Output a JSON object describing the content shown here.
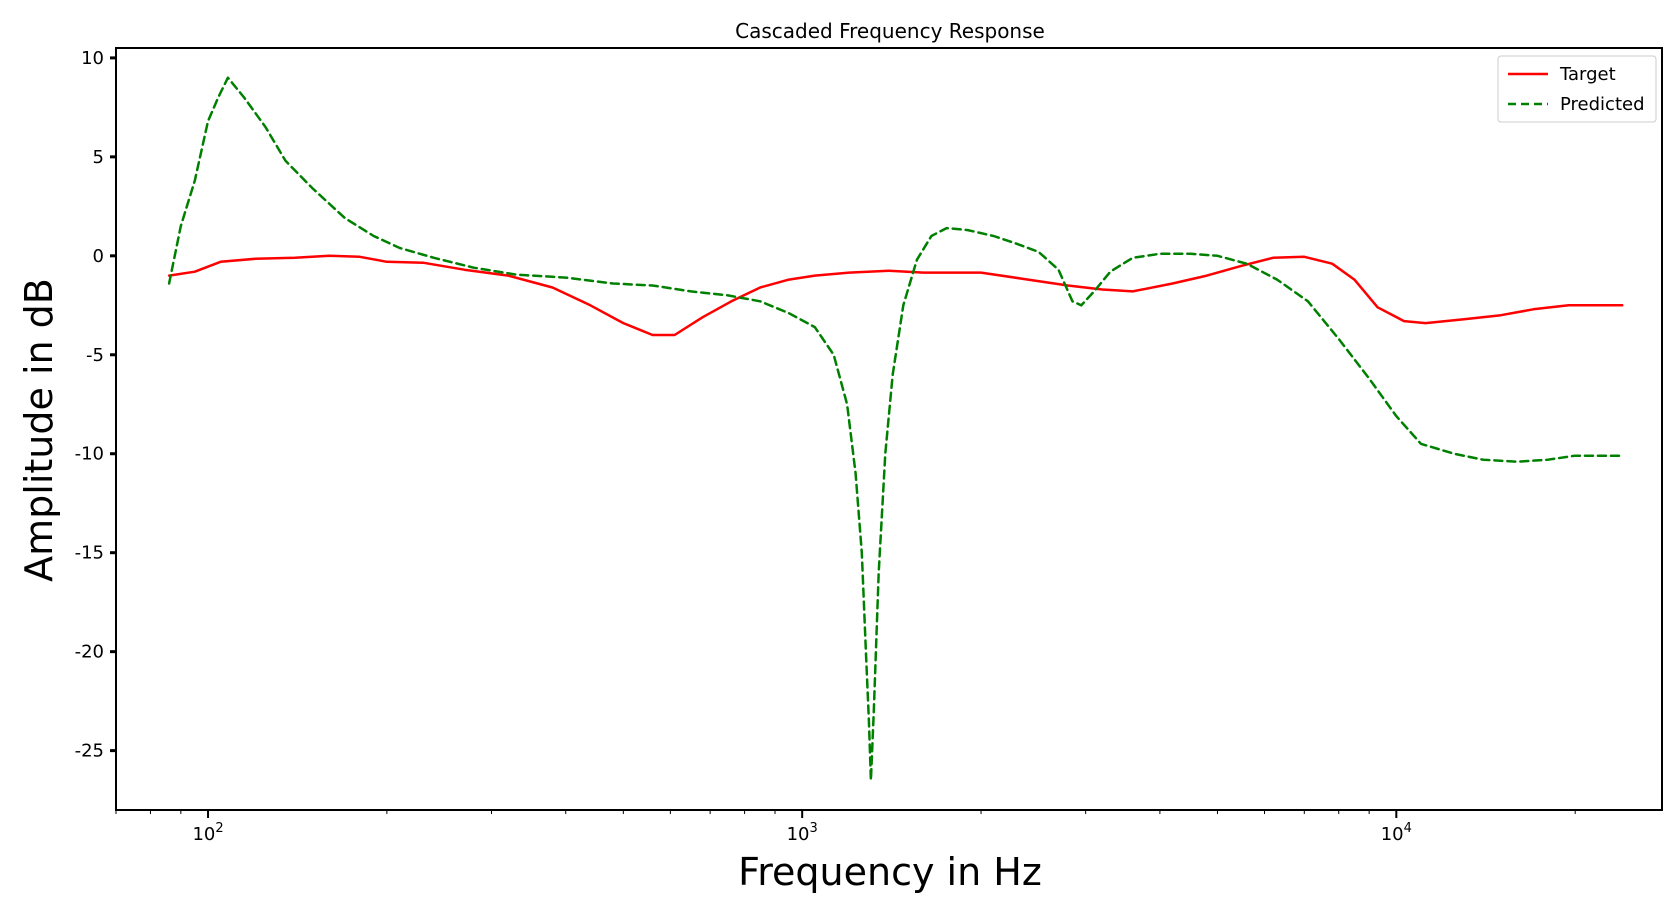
{
  "chart_data": {
    "type": "line",
    "title": "Cascaded Frequency Response",
    "xlabel": "Frequency in Hz",
    "ylabel": "Amplitude in dB",
    "xscale": "log",
    "xlim": [
      70,
      28000
    ],
    "ylim": [
      -28,
      10.5
    ],
    "xticks": [
      {
        "value": 100,
        "base": "10",
        "exp": "2"
      },
      {
        "value": 1000,
        "base": "10",
        "exp": "3"
      },
      {
        "value": 10000,
        "base": "10",
        "exp": "4"
      }
    ],
    "yticks": [
      {
        "value": 10,
        "label": "10"
      },
      {
        "value": 5,
        "label": "5"
      },
      {
        "value": 0,
        "label": "0"
      },
      {
        "value": -5,
        "label": "-5"
      },
      {
        "value": -10,
        "label": "-10"
      },
      {
        "value": -15,
        "label": "-15"
      },
      {
        "value": -20,
        "label": "-20"
      },
      {
        "value": -25,
        "label": "-25"
      }
    ],
    "grid": false,
    "legend_position": "top-right",
    "series": [
      {
        "name": "Target",
        "color": "#ff0000",
        "style": "solid",
        "points": [
          [
            86,
            -1.0
          ],
          [
            95,
            -0.8
          ],
          [
            105,
            -0.3
          ],
          [
            120,
            -0.15
          ],
          [
            140,
            -0.1
          ],
          [
            160,
            0.0
          ],
          [
            180,
            -0.05
          ],
          [
            200,
            -0.3
          ],
          [
            230,
            -0.35
          ],
          [
            270,
            -0.7
          ],
          [
            320,
            -1.0
          ],
          [
            380,
            -1.6
          ],
          [
            440,
            -2.5
          ],
          [
            500,
            -3.4
          ],
          [
            560,
            -4.0
          ],
          [
            610,
            -4.0
          ],
          [
            680,
            -3.1
          ],
          [
            760,
            -2.3
          ],
          [
            850,
            -1.6
          ],
          [
            950,
            -1.2
          ],
          [
            1050,
            -1.0
          ],
          [
            1200,
            -0.85
          ],
          [
            1400,
            -0.75
          ],
          [
            1600,
            -0.85
          ],
          [
            2000,
            -0.85
          ],
          [
            2400,
            -1.2
          ],
          [
            2800,
            -1.5
          ],
          [
            3200,
            -1.7
          ],
          [
            3600,
            -1.8
          ],
          [
            4200,
            -1.4
          ],
          [
            4800,
            -1.0
          ],
          [
            5500,
            -0.5
          ],
          [
            6200,
            -0.1
          ],
          [
            7000,
            -0.05
          ],
          [
            7800,
            -0.4
          ],
          [
            8500,
            -1.2
          ],
          [
            9300,
            -2.6
          ],
          [
            10300,
            -3.3
          ],
          [
            11200,
            -3.4
          ],
          [
            13000,
            -3.2
          ],
          [
            15000,
            -3.0
          ],
          [
            17000,
            -2.7
          ],
          [
            19500,
            -2.5
          ],
          [
            22000,
            -2.5
          ],
          [
            24000,
            -2.5
          ]
        ]
      },
      {
        "name": "Predicted",
        "color": "#008000",
        "style": "dashed",
        "points": [
          [
            86,
            -1.4
          ],
          [
            90,
            1.5
          ],
          [
            95,
            3.8
          ],
          [
            100,
            6.8
          ],
          [
            104,
            8.0
          ],
          [
            108,
            9.0
          ],
          [
            115,
            8.0
          ],
          [
            125,
            6.5
          ],
          [
            135,
            4.8
          ],
          [
            150,
            3.4
          ],
          [
            170,
            1.9
          ],
          [
            190,
            1.0
          ],
          [
            210,
            0.4
          ],
          [
            240,
            -0.1
          ],
          [
            280,
            -0.6
          ],
          [
            330,
            -0.95
          ],
          [
            400,
            -1.1
          ],
          [
            480,
            -1.4
          ],
          [
            560,
            -1.5
          ],
          [
            650,
            -1.8
          ],
          [
            750,
            -2.0
          ],
          [
            850,
            -2.3
          ],
          [
            950,
            -2.9
          ],
          [
            1050,
            -3.6
          ],
          [
            1130,
            -5.0
          ],
          [
            1190,
            -7.5
          ],
          [
            1230,
            -11.0
          ],
          [
            1260,
            -15.0
          ],
          [
            1280,
            -20.0
          ],
          [
            1295,
            -23.5
          ],
          [
            1305,
            -26.5
          ],
          [
            1320,
            -23.0
          ],
          [
            1345,
            -16.0
          ],
          [
            1380,
            -10.0
          ],
          [
            1420,
            -6.0
          ],
          [
            1480,
            -2.5
          ],
          [
            1560,
            -0.2
          ],
          [
            1650,
            1.0
          ],
          [
            1750,
            1.4
          ],
          [
            1900,
            1.3
          ],
          [
            2100,
            1.0
          ],
          [
            2300,
            0.6
          ],
          [
            2500,
            0.2
          ],
          [
            2700,
            -0.7
          ],
          [
            2850,
            -2.3
          ],
          [
            2950,
            -2.5
          ],
          [
            3100,
            -1.8
          ],
          [
            3300,
            -0.8
          ],
          [
            3600,
            -0.1
          ],
          [
            4000,
            0.1
          ],
          [
            4500,
            0.1
          ],
          [
            5000,
            0.0
          ],
          [
            5600,
            -0.4
          ],
          [
            6300,
            -1.2
          ],
          [
            7100,
            -2.3
          ],
          [
            8000,
            -4.2
          ],
          [
            9000,
            -6.2
          ],
          [
            10000,
            -8.1
          ],
          [
            11000,
            -9.5
          ],
          [
            12500,
            -10.0
          ],
          [
            14000,
            -10.3
          ],
          [
            16000,
            -10.4
          ],
          [
            18000,
            -10.3
          ],
          [
            20000,
            -10.1
          ],
          [
            24000,
            -10.1
          ]
        ]
      }
    ]
  }
}
